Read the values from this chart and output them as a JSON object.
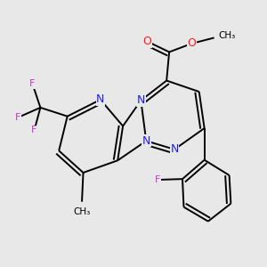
{
  "bg_color": "#e8e8e8",
  "atom_colors": {
    "N": "#1a1aff",
    "O": "#ff1a1a",
    "F": "#cc33cc",
    "C": "#000000"
  },
  "bond_color": "#000000",
  "bond_lw": 1.4,
  "dbo": 0.015
}
